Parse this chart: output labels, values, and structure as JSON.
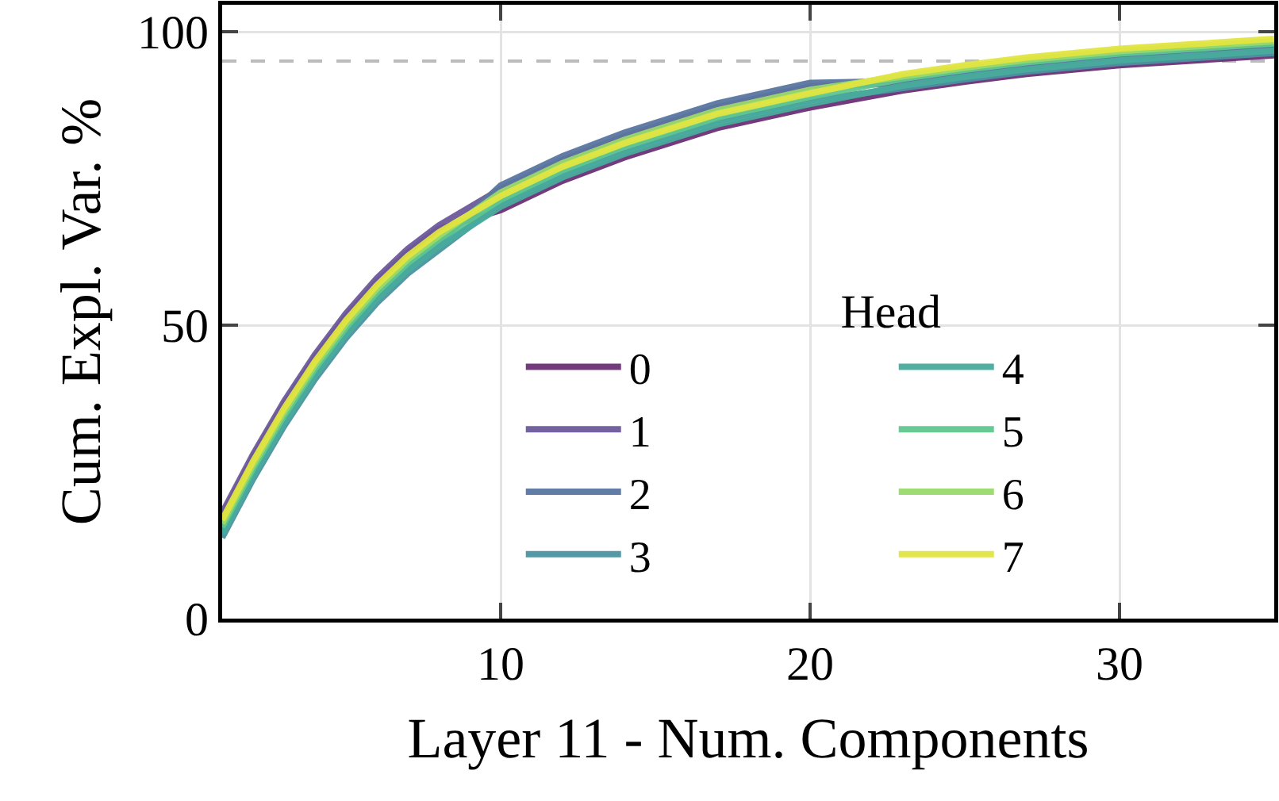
{
  "chart_data": {
    "type": "line",
    "xlabel": "Layer 11 - Num. Components",
    "ylabel": "Cum. Expl. Var. %",
    "legend_title": "Head",
    "x": [
      1,
      2,
      3,
      4,
      5,
      6,
      7,
      8,
      10,
      12,
      14,
      17,
      20,
      23,
      25,
      27,
      30,
      33,
      35
    ],
    "series": [
      {
        "name": "0",
        "color": "#6b2f77",
        "values": [
          17.4,
          27.4,
          36.4,
          44.4,
          51.4,
          57.4,
          62.4,
          66.4,
          69.6,
          74.6,
          78.6,
          83.6,
          87.1,
          90,
          91.5,
          92.8,
          94.3,
          95.3,
          96
        ]
      },
      {
        "name": "1",
        "color": "#6b5a9a",
        "values": [
          18,
          28,
          37,
          45,
          52,
          58,
          63,
          67,
          73.2,
          78.2,
          82.2,
          87.2,
          90.7,
          91.2,
          92.7,
          94,
          95.5,
          96.5,
          97.2
        ]
      },
      {
        "name": "2",
        "color": "#5a76a0",
        "values": [
          15,
          25,
          34,
          42,
          49,
          55,
          60,
          64,
          73.8,
          78.8,
          82.8,
          87.8,
          91.3,
          91.6,
          93.1,
          94.4,
          95.9,
          96.9,
          97.6
        ]
      },
      {
        "name": "3",
        "color": "#4a92a0",
        "values": [
          13.8,
          23.8,
          32.8,
          40.8,
          47.8,
          53.8,
          58.8,
          62.8,
          70.8,
          75.8,
          79.8,
          84.8,
          88.3,
          90.4,
          91.9,
          93.2,
          94.7,
          95.7,
          96.4
        ]
      },
      {
        "name": "4",
        "color": "#48ab9c",
        "values": [
          14.4,
          24.4,
          33.4,
          41.4,
          48.4,
          54.4,
          59.4,
          63.4,
          70.2,
          75.2,
          79.2,
          84.2,
          87.7,
          90.8,
          92.3,
          93.6,
          95.1,
          96.1,
          96.8
        ]
      },
      {
        "name": "5",
        "color": "#5fc78e",
        "values": [
          15.6,
          25.6,
          34.6,
          42.6,
          49.6,
          55.6,
          60.6,
          64.6,
          71.4,
          76.4,
          80.4,
          85.4,
          88.9,
          92,
          93.5,
          94.8,
          96.3,
          97.3,
          98
        ]
      },
      {
        "name": "6",
        "color": "#99d96a",
        "values": [
          16.2,
          26.2,
          35.2,
          43.2,
          50.2,
          56.2,
          61.2,
          65.2,
          72.6,
          77.6,
          81.6,
          86.6,
          90.1,
          92.4,
          93.9,
          95.2,
          96.7,
          97.7,
          98.4
        ]
      },
      {
        "name": "7",
        "color": "#e0e540",
        "values": [
          16.8,
          26.8,
          35.8,
          43.8,
          50.8,
          56.8,
          61.8,
          65.8,
          72,
          77,
          81,
          86,
          89.5,
          92.8,
          94.3,
          95.6,
          97.1,
          98.1,
          98.8
        ]
      }
    ],
    "xlim": [
      1,
      35
    ],
    "xticks": [
      10,
      20,
      30
    ],
    "ylim": [
      0,
      104.6
    ],
    "yticks": [
      0,
      50,
      100
    ],
    "ref_lines": [
      {
        "axis": "y",
        "value": 95,
        "color": "#bbbbbb",
        "line_style": "dashed"
      }
    ],
    "grid": true,
    "legend": "bottom right",
    "marker": "none",
    "line_style": "solid"
  }
}
